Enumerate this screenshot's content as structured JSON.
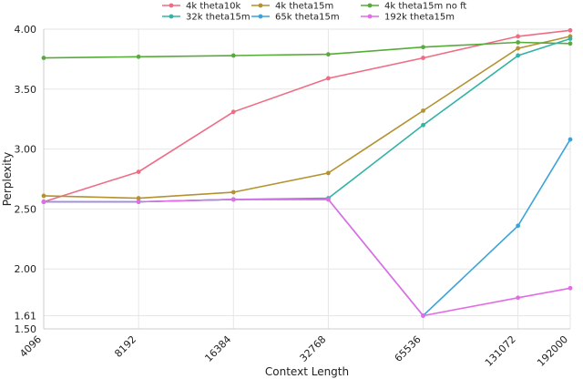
{
  "chart_data": {
    "type": "line",
    "xlabel": "Context Length",
    "ylabel": "Perplexity",
    "categories": [
      "4096",
      "8192",
      "16384",
      "32768",
      "65536",
      "131072",
      "192000"
    ],
    "x": [
      4096,
      8192,
      16384,
      32768,
      65536,
      131072,
      192000
    ],
    "ylim": [
      1.5,
      4.0
    ],
    "yticks": [
      1.5,
      1.61,
      2.0,
      2.5,
      3.0,
      3.5,
      4.0
    ],
    "ytick_labels": [
      "1.50",
      "1.61",
      "2.00",
      "2.50",
      "3.00",
      "3.50",
      "4.00"
    ],
    "grid": true,
    "legend_position": "top",
    "series": [
      {
        "name": "4k theta10k",
        "color": "#ee6d85",
        "values": [
          2.56,
          2.81,
          3.31,
          3.59,
          3.76,
          3.94,
          3.99
        ]
      },
      {
        "name": "4k theta15m",
        "color": "#b39232",
        "values": [
          2.61,
          2.59,
          2.64,
          2.8,
          3.32,
          3.84,
          3.94
        ]
      },
      {
        "name": "4k theta15m no ft",
        "color": "#56ac3a",
        "values": [
          3.76,
          3.77,
          3.78,
          3.79,
          3.85,
          3.89,
          3.88
        ]
      },
      {
        "name": "32k theta15m",
        "color": "#33b3a6",
        "values": [
          2.56,
          2.56,
          2.58,
          2.59,
          3.2,
          3.78,
          3.92
        ]
      },
      {
        "name": "65k theta15m",
        "color": "#3ba3d9",
        "values": [
          2.56,
          2.56,
          2.58,
          2.58,
          1.61,
          2.36,
          3.08
        ]
      },
      {
        "name": "192k theta15m",
        "color": "#e36ce6",
        "values": [
          2.56,
          2.56,
          2.58,
          2.58,
          1.61,
          1.76,
          1.84
        ]
      }
    ]
  }
}
